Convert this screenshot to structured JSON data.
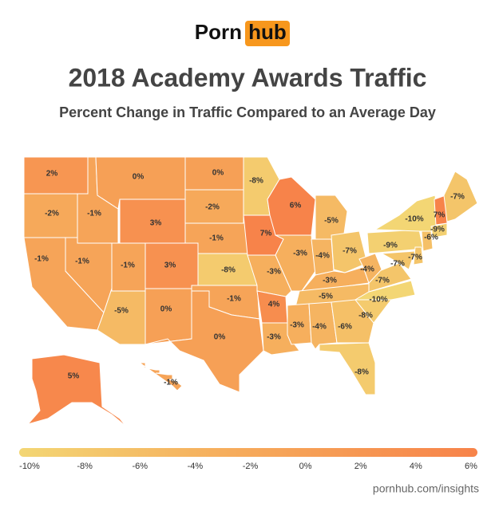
{
  "header": {
    "logo_left": "Porn",
    "logo_right": "hub",
    "title": "2018 Academy Awards Traffic",
    "subtitle": "Percent Change in Traffic Compared to an Average Day"
  },
  "chart_data": {
    "type": "choropleth",
    "values": [
      2,
      -2,
      -1,
      -1,
      -1,
      0,
      3,
      -1,
      3,
      -5,
      0,
      0,
      -2,
      -1,
      -8,
      -1,
      0,
      -8,
      7,
      -3,
      4,
      -3,
      6,
      -3,
      -5,
      -4,
      -7,
      -3,
      -5,
      -3,
      -4,
      -6,
      -8,
      -8,
      -10,
      -7,
      -4,
      -9,
      -10,
      -7,
      -7,
      -6,
      -9,
      7,
      -7,
      5,
      -1
    ],
    "value_labels": [
      "2%",
      "-2%",
      "-1%",
      "-1%",
      "-1%",
      "0%",
      "3%",
      "-1%",
      "3%",
      "-5%",
      "0%",
      "0%",
      "-2%",
      "-1%",
      "-8%",
      "-1%",
      "0%",
      "-8%",
      "7%",
      "-3%",
      "4%",
      "-3%",
      "6%",
      "-3%",
      "-5%",
      "-4%",
      "-7%",
      "-3%",
      "-5%",
      "-3%",
      "-4%",
      "-6%",
      "-8%",
      "-8%",
      "-10%",
      "-7%",
      "-4%",
      "-9%",
      "-10%",
      "-7%",
      "-7%",
      "-6%",
      "-9%",
      "7%",
      "-7%",
      "5%",
      "-1%"
    ],
    "colorscale": {
      "lim": [
        -10,
        6
      ],
      "colors": [
        "#f3d674",
        "#f6a95a",
        "#f7834a"
      ],
      "ticks": [
        {
          "value": -10,
          "label": "-10%"
        },
        {
          "value": -8,
          "label": "-8%"
        },
        {
          "value": -6,
          "label": "-6%"
        },
        {
          "value": -4,
          "label": "-4%"
        },
        {
          "value": -2,
          "label": "-2%"
        },
        {
          "value": 0,
          "label": "0%"
        },
        {
          "value": 2,
          "label": "2%"
        },
        {
          "value": 4,
          "label": "4%"
        },
        {
          "value": 6,
          "label": "6%"
        }
      ]
    }
  },
  "footer": "pornhub.com/insights"
}
